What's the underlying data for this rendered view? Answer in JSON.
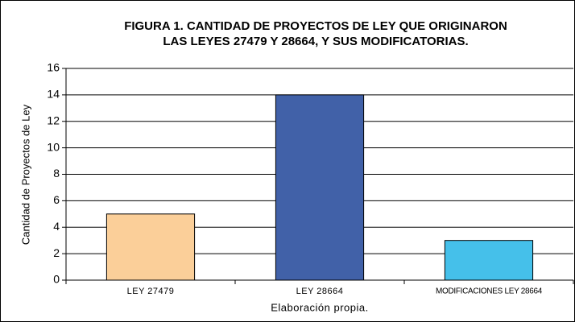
{
  "chart_data": {
    "type": "bar",
    "title": [
      "FIGURA 1. CANTIDAD DE PROYECTOS DE LEY QUE ORIGINARON",
      "LAS LEYES 27479 Y 28664, Y SUS MODIFICATORIAS."
    ],
    "y_label": "Cantidad de Proyectos de Ley",
    "x_label": "Elaboración propia.",
    "categories": [
      "LEY 27479",
      "LEY 28664",
      "MODIFICACIONES LEY 28664"
    ],
    "values": [
      5,
      14,
      3
    ],
    "colors": [
      "#fbcf99",
      "#4161a8",
      "#45c0ea"
    ],
    "ylim": [
      0,
      16
    ],
    "yticks": [
      0,
      2,
      4,
      6,
      8,
      10,
      12,
      14,
      16
    ],
    "grid": true
  }
}
